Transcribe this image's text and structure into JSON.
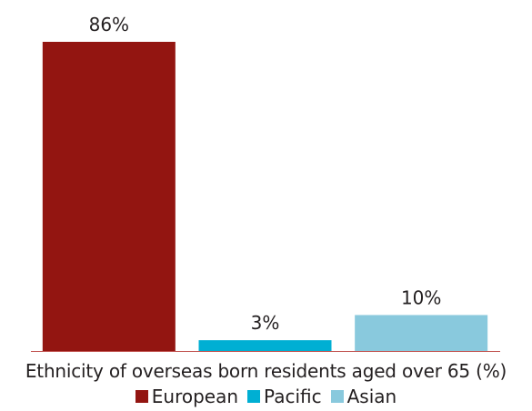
{
  "chart_data": {
    "type": "bar",
    "categories": [
      "European",
      "Pacific",
      "Asian"
    ],
    "values": [
      86,
      3,
      10
    ],
    "value_labels": [
      "86%",
      "3%",
      "10%"
    ],
    "colors": [
      "#931511",
      "#00afd3",
      "#89c9dd"
    ],
    "axis_color": "#c0504d",
    "title": "",
    "xlabel": "Ethnicity of overseas born residents aged over 65 (%)",
    "ylabel": "",
    "ylim": [
      0,
      86
    ],
    "grid": false,
    "legend_position": "bottom",
    "legend": [
      "European",
      "Pacific",
      "Asian"
    ]
  }
}
